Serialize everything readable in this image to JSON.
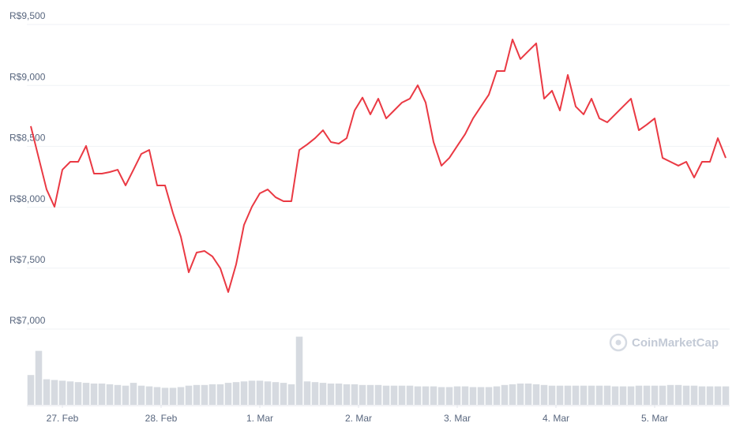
{
  "chart_data": {
    "type": "line",
    "watermark": "CoinMarketCap",
    "x": [
      -0.32,
      -0.24,
      -0.16,
      -0.08,
      0,
      0.08,
      0.16,
      0.24,
      0.32,
      0.4,
      0.48,
      0.56,
      0.64,
      0.72,
      0.8,
      0.88,
      0.96,
      1.04,
      1.12,
      1.2,
      1.28,
      1.36,
      1.44,
      1.52,
      1.6,
      1.68,
      1.76,
      1.84,
      1.92,
      2,
      2.08,
      2.16,
      2.24,
      2.32,
      2.4,
      2.48,
      2.56,
      2.64,
      2.72,
      2.8,
      2.88,
      2.96,
      3.04,
      3.12,
      3.2,
      3.28,
      3.36,
      3.44,
      3.52,
      3.6,
      3.68,
      3.76,
      3.84,
      3.92,
      4,
      4.08,
      4.16,
      4.24,
      4.32,
      4.4,
      4.48,
      4.56,
      4.64,
      4.72,
      4.8,
      4.88,
      4.96,
      5.04,
      5.12,
      5.2,
      5.28,
      5.36,
      5.44,
      5.52,
      5.6,
      5.68,
      5.76,
      5.84,
      5.92,
      6,
      6.08,
      6.16,
      6.24,
      6.32,
      6.4,
      6.48,
      6.56,
      6.64,
      6.72
    ],
    "series": [
      {
        "color": "#ea3943",
        "values": [
          8665,
          8405,
          8146,
          8004,
          8308,
          8373,
          8373,
          8503,
          8276,
          8276,
          8289,
          8308,
          8179,
          8308,
          8438,
          8470,
          8179,
          8179,
          7952,
          7758,
          7466,
          7628,
          7641,
          7596,
          7499,
          7304,
          7531,
          7855,
          8004,
          8114,
          8146,
          8082,
          8049,
          8049,
          8470,
          8515,
          8567,
          8632,
          8535,
          8522,
          8567,
          8794,
          8900,
          8762,
          8891,
          8729,
          8794,
          8859,
          8891,
          9001,
          8859,
          8535,
          8341,
          8405,
          8503,
          8600,
          8729,
          8827,
          8924,
          9118,
          9118,
          9377,
          9216,
          9281,
          9345,
          8891,
          8956,
          8794,
          9086,
          8827,
          8762,
          8891,
          8729,
          8697,
          8762,
          8827,
          8891,
          8632,
          8678,
          8729,
          8405,
          8373,
          8341,
          8373,
          8244,
          8373,
          8373,
          8567,
          8405
        ]
      },
      {
        "type": "bar",
        "axis": "y2",
        "color": "#d6dae0",
        "values": [
          42,
          76,
          36,
          35,
          34,
          33,
          32,
          31,
          30,
          30,
          29,
          28,
          27,
          31,
          27,
          26,
          25,
          24,
          24,
          25,
          27,
          28,
          28,
          29,
          29,
          31,
          32,
          33,
          34,
          34,
          33,
          32,
          31,
          29,
          96,
          33,
          32,
          31,
          30,
          30,
          29,
          29,
          28,
          28,
          28,
          27,
          27,
          27,
          27,
          26,
          26,
          26,
          25,
          25,
          26,
          26,
          25,
          25,
          25,
          26,
          28,
          29,
          30,
          30,
          29,
          28,
          27,
          27,
          27,
          27,
          27,
          27,
          27,
          27,
          26,
          26,
          26,
          27,
          27,
          27,
          27,
          28,
          28,
          27,
          27,
          26,
          26,
          26,
          26
        ]
      }
    ],
    "xlim": [
      -0.36,
      6.76
    ],
    "xticks": [
      {
        "value": 0,
        "label": "27. Feb"
      },
      {
        "value": 1,
        "label": "28. Feb"
      },
      {
        "value": 2,
        "label": "1. Mar"
      },
      {
        "value": 3,
        "label": "2. Mar"
      },
      {
        "value": 4,
        "label": "3. Mar"
      },
      {
        "value": 5,
        "label": "4. Mar"
      },
      {
        "value": 6,
        "label": "5. Mar"
      }
    ],
    "ylim": [
      7000,
      9500
    ],
    "yticks": [
      {
        "value": 7000,
        "label": "R$7,000"
      },
      {
        "value": 7500,
        "label": "R$7,500"
      },
      {
        "value": 8000,
        "label": "R$8,000"
      },
      {
        "value": 8500,
        "label": "R$8,500"
      },
      {
        "value": 9000,
        "label": "R$9,000"
      },
      {
        "value": 9500,
        "label": "R$9,500"
      }
    ],
    "y2lim": [
      0,
      100
    ],
    "grid": true
  }
}
